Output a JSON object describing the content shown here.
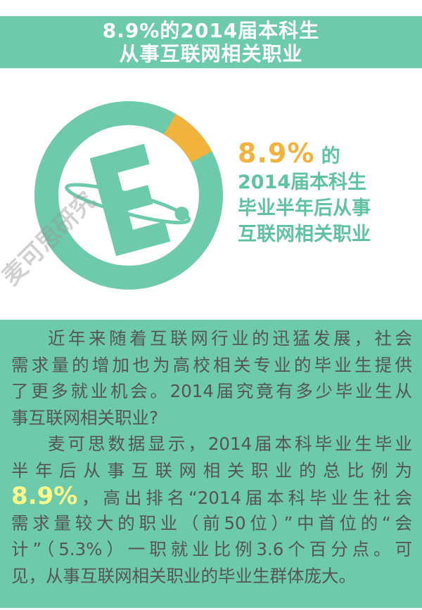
{
  "header": {
    "title_line1": "8.9%的2014届本科生",
    "title_line2": "从事互联网相关职业"
  },
  "donut": {
    "value_percent": 8.9,
    "ring_color": "#6dcbab",
    "highlight_color": "#f2b23e",
    "icon": "e-orbit-logo-icon"
  },
  "stat": {
    "percent": "8.9%",
    "suffix": "的",
    "line2": "2014届本科生",
    "line3": "毕业半年后从事",
    "line4": "互联网相关职业"
  },
  "watermark": "麦可思研究",
  "body": {
    "p1": [
      "近年来随着互联网行业的迅猛发展，社会",
      "需求量的增加也为高校相关专业的毕业生提供",
      "了更多就业机会。2014届究竟有多少毕业生从",
      "事互联网相关职业?"
    ],
    "p2": [
      "麦可思数据显示，2014届本科毕业生毕业",
      "半年后从事互联网相关职业的总比例为"
    ],
    "p2_highlight": "8.9%",
    "p2_after": "，高出排名“2014届本科毕业生社会",
    "p2_rest": [
      "需求量较大的职业（前50位）”中首位的“会",
      "计”（5.3%）一职就业比例3.6个百分点。可",
      "见，从事互联网相关职业的毕业生群体庞大。"
    ]
  }
}
